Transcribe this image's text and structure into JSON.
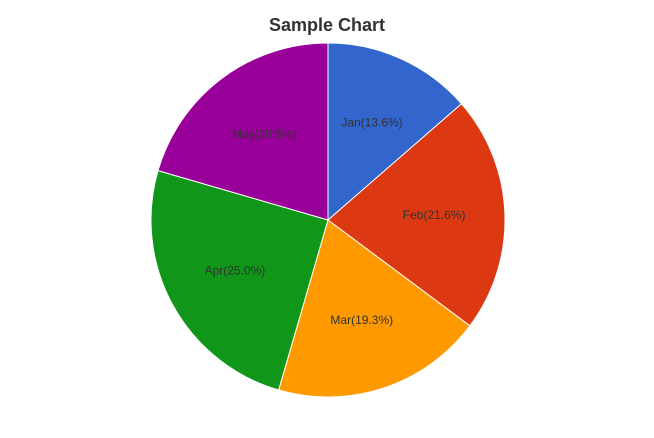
{
  "chart_data": {
    "type": "pie",
    "title": "Sample Chart",
    "categories": [
      "Jan",
      "Feb",
      "Mar",
      "Apr",
      "May"
    ],
    "values": [
      13.6,
      21.6,
      19.3,
      25.0,
      20.5
    ],
    "labels": [
      "Jan(13.6%)",
      "Feb(21.6%)",
      "Mar(19.3%)",
      "Apr(25.0%)",
      "May(20.5%)"
    ],
    "colors": [
      "#3366cc",
      "#dc3912",
      "#ff9900",
      "#109618",
      "#990099"
    ],
    "start_angle": "12 o'clock",
    "direction": "clockwise",
    "legend": "none"
  }
}
